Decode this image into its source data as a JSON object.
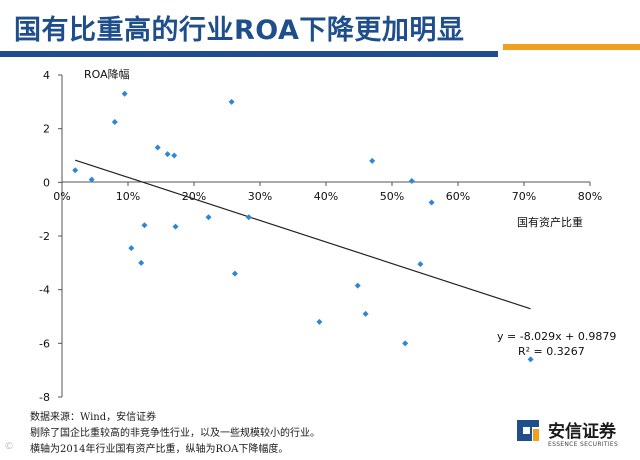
{
  "slide": {
    "title": "国有比重高的行业ROA下降更加明显",
    "footnotes": [
      "数据来源：Wind，安信证券",
      "剔除了国企比重较高的非竞争性行业，以及一些规模较小的行业。",
      "横轴为2014年行业国有资产比重，纵轴为ROA下降幅度。"
    ]
  },
  "logo": {
    "name": "安信证券",
    "english": "ESSENCE SECURITIES"
  },
  "watermark": "©",
  "colors": {
    "title": "#1f4e8c",
    "accent_orange": "#f0a01e",
    "points": "#2e86d4",
    "trendline": "#222222"
  },
  "chart_data": {
    "type": "scatter",
    "title": "",
    "xlabel": "国有资产比重",
    "ylabel": "ROA降幅",
    "xlim": [
      0,
      0.8
    ],
    "ylim": [
      -8,
      4
    ],
    "x_ticks": [
      0,
      0.1,
      0.2,
      0.3,
      0.4,
      0.5,
      0.6,
      0.7,
      0.8
    ],
    "x_tick_labels": [
      "0%",
      "10%",
      "20%",
      "30%",
      "40%",
      "50%",
      "60%",
      "70%",
      "80%"
    ],
    "y_ticks": [
      4,
      2,
      0,
      -2,
      -4,
      -6,
      -8
    ],
    "y_tick_labels": [
      "4",
      "2",
      "0",
      "-2",
      "-4",
      "-6",
      "-8"
    ],
    "grid": false,
    "points": [
      {
        "x": 0.02,
        "y": 0.45
      },
      {
        "x": 0.045,
        "y": 0.1
      },
      {
        "x": 0.08,
        "y": 2.25
      },
      {
        "x": 0.095,
        "y": 3.3
      },
      {
        "x": 0.105,
        "y": -2.45
      },
      {
        "x": 0.12,
        "y": -3.0
      },
      {
        "x": 0.125,
        "y": -1.6
      },
      {
        "x": 0.145,
        "y": 1.3
      },
      {
        "x": 0.16,
        "y": 1.05
      },
      {
        "x": 0.17,
        "y": 1.0
      },
      {
        "x": 0.172,
        "y": -1.65
      },
      {
        "x": 0.222,
        "y": -1.3
      },
      {
        "x": 0.257,
        "y": 3.0
      },
      {
        "x": 0.262,
        "y": -3.4
      },
      {
        "x": 0.283,
        "y": -1.3
      },
      {
        "x": 0.39,
        "y": -5.2
      },
      {
        "x": 0.448,
        "y": -3.85
      },
      {
        "x": 0.46,
        "y": -4.9
      },
      {
        "x": 0.47,
        "y": 0.8
      },
      {
        "x": 0.52,
        "y": -6.0
      },
      {
        "x": 0.53,
        "y": 0.05
      },
      {
        "x": 0.543,
        "y": -3.05
      },
      {
        "x": 0.56,
        "y": -0.75
      },
      {
        "x": 0.71,
        "y": -6.6
      }
    ],
    "trendline": {
      "slope": -8.029,
      "intercept": 0.9879,
      "x_range": [
        0.02,
        0.71
      ]
    },
    "annotations": [
      "y = -8.029x + 0.9879",
      "R² = 0.3267"
    ]
  }
}
